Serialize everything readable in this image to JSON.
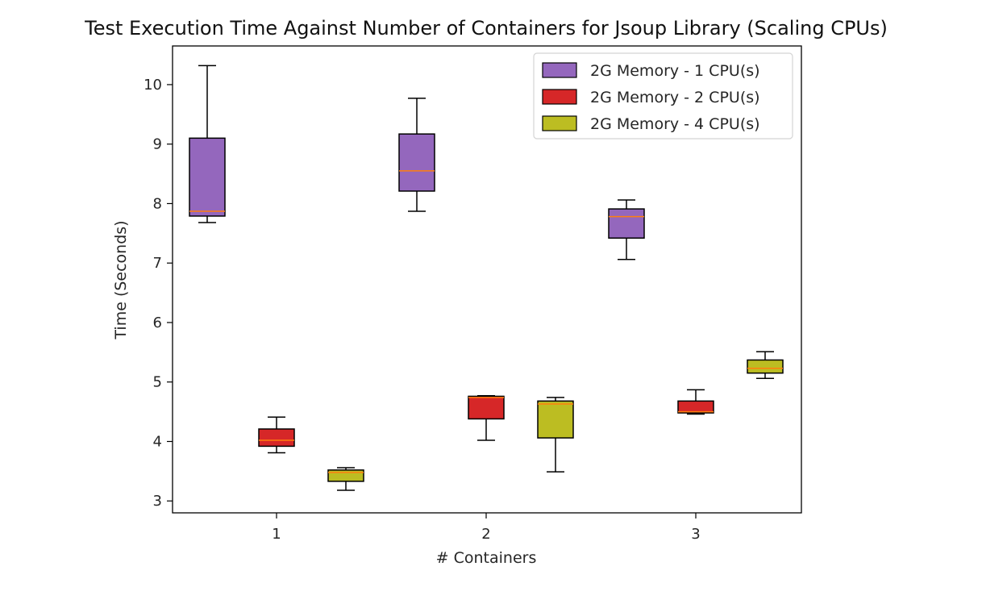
{
  "chart_data": {
    "type": "box",
    "title": "Test Execution Time Against Number of Containers for Jsoup Library (Scaling CPUs)",
    "xlabel": "# Containers",
    "ylabel": "Time (Seconds)",
    "categories": [
      "1",
      "2",
      "3"
    ],
    "ylim": [
      2.8,
      10.65
    ],
    "yticks": [
      3,
      4,
      5,
      6,
      7,
      8,
      9,
      10
    ],
    "legend_position": "top-right",
    "grid": false,
    "series": [
      {
        "name": "2G Memory - 1 CPU(s)",
        "color": "#9467bd",
        "boxes": [
          {
            "whisker_low": 7.68,
            "q1": 7.79,
            "median": 7.87,
            "q3": 9.1,
            "whisker_high": 10.32
          },
          {
            "whisker_low": 7.87,
            "q1": 8.21,
            "median": 8.55,
            "q3": 9.17,
            "whisker_high": 9.77
          },
          {
            "whisker_low": 7.06,
            "q1": 7.42,
            "median": 7.78,
            "q3": 7.91,
            "whisker_high": 8.06
          }
        ]
      },
      {
        "name": "2G Memory - 2 CPU(s)",
        "color": "#d62728",
        "boxes": [
          {
            "whisker_low": 3.81,
            "q1": 3.92,
            "median": 4.02,
            "q3": 4.21,
            "whisker_high": 4.41
          },
          {
            "whisker_low": 4.02,
            "q1": 4.38,
            "median": 4.74,
            "q3": 4.76,
            "whisker_high": 4.77
          },
          {
            "whisker_low": 4.46,
            "q1": 4.48,
            "median": 4.5,
            "q3": 4.68,
            "whisker_high": 4.87
          }
        ]
      },
      {
        "name": "2G Memory - 4 CPU(s)",
        "color": "#bcbd22",
        "boxes": [
          {
            "whisker_low": 3.18,
            "q1": 3.33,
            "median": 3.48,
            "q3": 3.52,
            "whisker_high": 3.56
          },
          {
            "whisker_low": 3.49,
            "q1": 4.06,
            "median": 4.63,
            "q3": 4.68,
            "whisker_high": 4.74
          },
          {
            "whisker_low": 5.06,
            "q1": 5.15,
            "median": 5.23,
            "q3": 5.37,
            "whisker_high": 5.51
          }
        ]
      }
    ],
    "median_color": "#ff7f0e"
  }
}
